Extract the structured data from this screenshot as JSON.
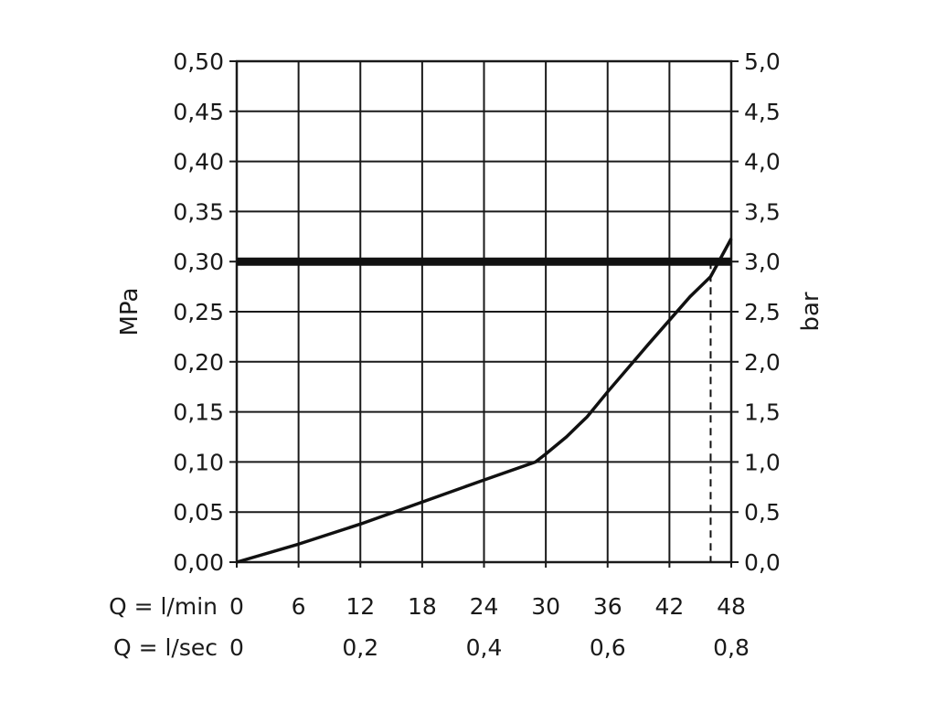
{
  "chart_data": {
    "type": "line",
    "y_left_label": "MPa",
    "y_right_label": "bar",
    "x_label_lpm": "Q = l/min",
    "x_label_lps": "Q = l/sec",
    "xlim": [
      0,
      48
    ],
    "ylim": [
      0,
      0.5
    ],
    "x_ticks_lpm": [
      "0",
      "6",
      "12",
      "18",
      "24",
      "30",
      "36",
      "42",
      "48"
    ],
    "x_ticks_lps": [
      {
        "value": 0,
        "label": "0"
      },
      {
        "value": 12,
        "label": "0,2"
      },
      {
        "value": 24,
        "label": "0,4"
      },
      {
        "value": 36,
        "label": "0,6"
      },
      {
        "value": 48,
        "label": "0,8"
      }
    ],
    "y_ticks_left": [
      "0,00",
      "0,05",
      "0,10",
      "0,15",
      "0,20",
      "0,25",
      "0,30",
      "0,35",
      "0,40",
      "0,45",
      "0,50"
    ],
    "y_ticks_right": [
      "0,0",
      "0,5",
      "1,0",
      "1,5",
      "2,0",
      "2,5",
      "3,0",
      "3,5",
      "4,0",
      "4,5",
      "5,0"
    ],
    "grid": true,
    "series": [
      {
        "x": [
          0,
          6,
          12,
          18,
          24,
          29,
          30,
          32,
          34,
          36,
          40,
          44,
          46,
          48
        ],
        "values": [
          0,
          0.018,
          0.038,
          0.06,
          0.082,
          0.1,
          0.108,
          0.125,
          0.145,
          0.17,
          0.218,
          0.265,
          0.285,
          0.323
        ]
      }
    ],
    "reference_line_y": 0.3,
    "marker_x": 46
  }
}
